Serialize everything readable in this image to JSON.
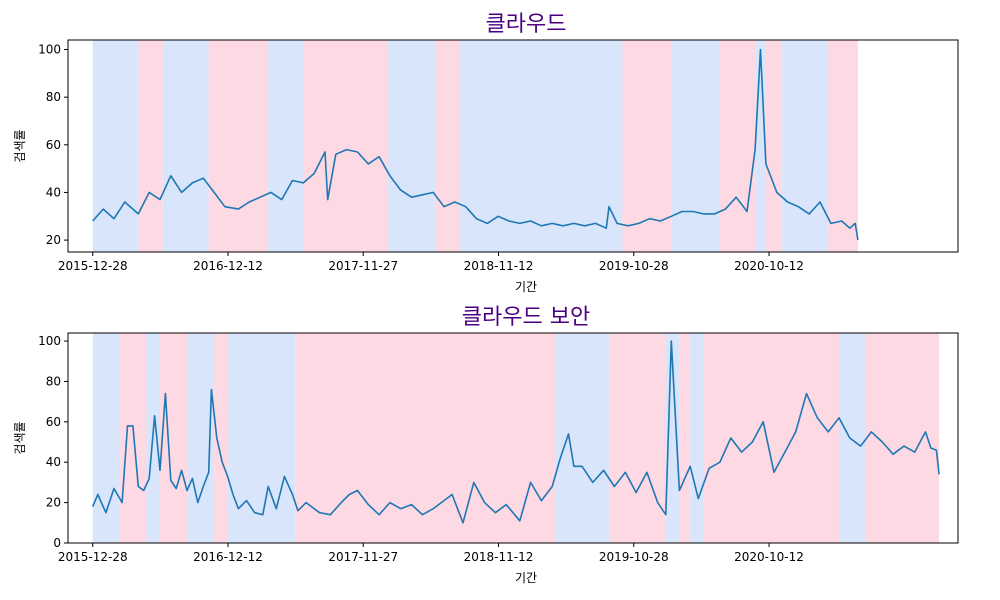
{
  "chart_data": [
    {
      "type": "line",
      "title": "클라우드",
      "xlabel": "기간",
      "ylabel": "검색률",
      "x_tick_labels": [
        "2015-12-28",
        "2016-12-12",
        "2017-11-27",
        "2018-11-12",
        "2019-10-28",
        "2020-10-12"
      ],
      "yticks": [
        20,
        40,
        60,
        80,
        100
      ],
      "ylim": [
        15,
        104
      ],
      "grid": false,
      "colors": {
        "line": "#1f77b4",
        "rise": "#fdd9e4",
        "fall": "#d8e5fb",
        "title": "#4b0082"
      },
      "bands": [
        {
          "start": "2015-12-28",
          "end": "2016-04-24",
          "trend": "fall"
        },
        {
          "start": "2016-04-24",
          "end": "2016-06-26",
          "trend": "rise"
        },
        {
          "start": "2016-06-26",
          "end": "2016-10-23",
          "trend": "fall"
        },
        {
          "start": "2016-10-23",
          "end": "2017-03-26",
          "trend": "rise"
        },
        {
          "start": "2017-03-26",
          "end": "2017-06-25",
          "trend": "fall"
        },
        {
          "start": "2017-06-25",
          "end": "2018-01-28",
          "trend": "rise"
        },
        {
          "start": "2018-01-28",
          "end": "2018-06-03",
          "trend": "fall"
        },
        {
          "start": "2018-06-03",
          "end": "2018-08-05",
          "trend": "rise"
        },
        {
          "start": "2018-08-05",
          "end": "2019-09-29",
          "trend": "fall"
        },
        {
          "start": "2019-09-29",
          "end": "2020-02-02",
          "trend": "rise"
        },
        {
          "start": "2020-02-02",
          "end": "2020-06-07",
          "trend": "fall"
        },
        {
          "start": "2020-06-07",
          "end": "2020-09-06",
          "trend": "rise"
        },
        {
          "start": "2020-09-06",
          "end": "2020-10-04",
          "trend": "fall"
        },
        {
          "start": "2020-10-04",
          "end": "2020-11-15",
          "trend": "rise"
        },
        {
          "start": "2020-11-15",
          "end": "2021-03-14",
          "trend": "fall"
        },
        {
          "start": "2021-03-14",
          "end": "2021-05-30",
          "trend": "rise"
        }
      ],
      "series": [
        {
          "points": [
            [
              "2015-12-28",
              28
            ],
            [
              "2016-01-24",
              33
            ],
            [
              "2016-02-21",
              29
            ],
            [
              "2016-03-20",
              36
            ],
            [
              "2016-04-24",
              31
            ],
            [
              "2016-05-22",
              40
            ],
            [
              "2016-06-19",
              37
            ],
            [
              "2016-07-17",
              47
            ],
            [
              "2016-08-14",
              40
            ],
            [
              "2016-09-11",
              44
            ],
            [
              "2016-10-09",
              46
            ],
            [
              "2016-11-06",
              40
            ],
            [
              "2016-12-04",
              34
            ],
            [
              "2017-01-08",
              33
            ],
            [
              "2017-02-05",
              36
            ],
            [
              "2017-03-05",
              38
            ],
            [
              "2017-04-02",
              40
            ],
            [
              "2017-04-30",
              37
            ],
            [
              "2017-05-28",
              45
            ],
            [
              "2017-06-25",
              44
            ],
            [
              "2017-07-23",
              48
            ],
            [
              "2017-08-20",
              57
            ],
            [
              "2017-08-27",
              37
            ],
            [
              "2017-09-17",
              56
            ],
            [
              "2017-10-15",
              58
            ],
            [
              "2017-11-12",
              57
            ],
            [
              "2017-12-10",
              52
            ],
            [
              "2018-01-07",
              55
            ],
            [
              "2018-02-04",
              47
            ],
            [
              "2018-03-04",
              41
            ],
            [
              "2018-04-01",
              38
            ],
            [
              "2018-04-29",
              39
            ],
            [
              "2018-05-27",
              40
            ],
            [
              "2018-06-24",
              34
            ],
            [
              "2018-07-22",
              36
            ],
            [
              "2018-08-19",
              34
            ],
            [
              "2018-09-16",
              29
            ],
            [
              "2018-10-14",
              27
            ],
            [
              "2018-11-11",
              30
            ],
            [
              "2018-12-09",
              28
            ],
            [
              "2019-01-06",
              27
            ],
            [
              "2019-02-03",
              28
            ],
            [
              "2019-03-03",
              26
            ],
            [
              "2019-03-31",
              27
            ],
            [
              "2019-04-28",
              26
            ],
            [
              "2019-05-26",
              27
            ],
            [
              "2019-06-23",
              26
            ],
            [
              "2019-07-21",
              27
            ],
            [
              "2019-08-18",
              25
            ],
            [
              "2019-08-25",
              34
            ],
            [
              "2019-09-15",
              27
            ],
            [
              "2019-10-13",
              26
            ],
            [
              "2019-11-10",
              27
            ],
            [
              "2019-12-08",
              29
            ],
            [
              "2020-01-05",
              28
            ],
            [
              "2020-02-02",
              30
            ],
            [
              "2020-03-01",
              32
            ],
            [
              "2020-03-29",
              32
            ],
            [
              "2020-04-26",
              31
            ],
            [
              "2020-05-24",
              31
            ],
            [
              "2020-06-21",
              33
            ],
            [
              "2020-07-19",
              38
            ],
            [
              "2020-08-16",
              32
            ],
            [
              "2020-09-06",
              58
            ],
            [
              "2020-09-20",
              100
            ],
            [
              "2020-10-04",
              52
            ],
            [
              "2020-11-01",
              40
            ],
            [
              "2020-11-29",
              36
            ],
            [
              "2020-12-27",
              34
            ],
            [
              "2021-01-24",
              31
            ],
            [
              "2021-02-21",
              36
            ],
            [
              "2021-03-21",
              27
            ],
            [
              "2021-04-18",
              28
            ],
            [
              "2021-05-09",
              25
            ],
            [
              "2021-05-23",
              27
            ],
            [
              "2021-05-30",
              20
            ]
          ]
        }
      ]
    },
    {
      "type": "line",
      "title": "클라우드 보안",
      "xlabel": "기간",
      "ylabel": "검색률",
      "x_tick_labels": [
        "2015-12-28",
        "2016-12-12",
        "2017-11-27",
        "2018-11-12",
        "2019-10-28",
        "2020-10-12"
      ],
      "yticks": [
        0,
        20,
        40,
        60,
        80,
        100
      ],
      "ylim": [
        0,
        104
      ],
      "grid": false,
      "colors": {
        "line": "#1f77b4",
        "rise": "#fdd9e4",
        "fall": "#d8e5fb",
        "title": "#4b0082"
      },
      "bands": [
        {
          "start": "2015-12-28",
          "end": "2016-03-06",
          "trend": "fall"
        },
        {
          "start": "2016-03-06",
          "end": "2016-05-15",
          "trend": "rise"
        },
        {
          "start": "2016-05-15",
          "end": "2016-06-19",
          "trend": "fall"
        },
        {
          "start": "2016-06-19",
          "end": "2016-08-28",
          "trend": "rise"
        },
        {
          "start": "2016-08-28",
          "end": "2016-11-06",
          "trend": "fall"
        },
        {
          "start": "2016-11-06",
          "end": "2016-12-11",
          "trend": "rise"
        },
        {
          "start": "2016-12-11",
          "end": "2017-06-04",
          "trend": "fall"
        },
        {
          "start": "2017-06-04",
          "end": "2019-04-07",
          "trend": "rise"
        },
        {
          "start": "2019-04-07",
          "end": "2019-08-25",
          "trend": "fall"
        },
        {
          "start": "2019-08-25",
          "end": "2020-01-19",
          "trend": "rise"
        },
        {
          "start": "2020-01-19",
          "end": "2020-02-23",
          "trend": "fall"
        },
        {
          "start": "2020-02-23",
          "end": "2020-03-22",
          "trend": "rise"
        },
        {
          "start": "2020-03-22",
          "end": "2020-04-26",
          "trend": "fall"
        },
        {
          "start": "2020-04-26",
          "end": "2021-04-11",
          "trend": "rise"
        },
        {
          "start": "2021-04-11",
          "end": "2021-06-20",
          "trend": "fall"
        },
        {
          "start": "2021-06-20",
          "end": "2021-12-26",
          "trend": "rise"
        }
      ],
      "series": [
        {
          "points": [
            [
              "2015-12-28",
              18
            ],
            [
              "2016-01-10",
              24
            ],
            [
              "2016-01-31",
              15
            ],
            [
              "2016-02-21",
              27
            ],
            [
              "2016-03-13",
              20
            ],
            [
              "2016-03-27",
              58
            ],
            [
              "2016-04-10",
              58
            ],
            [
              "2016-04-24",
              28
            ],
            [
              "2016-05-08",
              26
            ],
            [
              "2016-05-22",
              32
            ],
            [
              "2016-06-05",
              63
            ],
            [
              "2016-06-19",
              36
            ],
            [
              "2016-07-03",
              74
            ],
            [
              "2016-07-17",
              31
            ],
            [
              "2016-07-31",
              27
            ],
            [
              "2016-08-14",
              36
            ],
            [
              "2016-08-28",
              26
            ],
            [
              "2016-09-11",
              32
            ],
            [
              "2016-09-25",
              20
            ],
            [
              "2016-10-09",
              28
            ],
            [
              "2016-10-23",
              35
            ],
            [
              "2016-10-30",
              76
            ],
            [
              "2016-11-13",
              52
            ],
            [
              "2016-11-27",
              40
            ],
            [
              "2016-12-11",
              33
            ],
            [
              "2016-12-25",
              24
            ],
            [
              "2017-01-08",
              17
            ],
            [
              "2017-01-29",
              21
            ],
            [
              "2017-02-19",
              15
            ],
            [
              "2017-03-12",
              14
            ],
            [
              "2017-03-26",
              28
            ],
            [
              "2017-04-16",
              17
            ],
            [
              "2017-05-07",
              33
            ],
            [
              "2017-05-28",
              24
            ],
            [
              "2017-06-11",
              16
            ],
            [
              "2017-07-02",
              20
            ],
            [
              "2017-08-06",
              15
            ],
            [
              "2017-09-03",
              14
            ],
            [
              "2017-10-01",
              20
            ],
            [
              "2017-10-22",
              24
            ],
            [
              "2017-11-12",
              26
            ],
            [
              "2017-12-10",
              19
            ],
            [
              "2018-01-07",
              14
            ],
            [
              "2018-02-04",
              20
            ],
            [
              "2018-03-04",
              17
            ],
            [
              "2018-04-01",
              19
            ],
            [
              "2018-04-29",
              14
            ],
            [
              "2018-05-27",
              17
            ],
            [
              "2018-06-24",
              21
            ],
            [
              "2018-07-15",
              24
            ],
            [
              "2018-08-12",
              10
            ],
            [
              "2018-09-09",
              30
            ],
            [
              "2018-10-07",
              20
            ],
            [
              "2018-11-04",
              15
            ],
            [
              "2018-12-02",
              19
            ],
            [
              "2019-01-06",
              11
            ],
            [
              "2019-02-03",
              30
            ],
            [
              "2019-03-03",
              21
            ],
            [
              "2019-03-31",
              28
            ],
            [
              "2019-04-21",
              42
            ],
            [
              "2019-05-12",
              54
            ],
            [
              "2019-05-26",
              38
            ],
            [
              "2019-06-16",
              38
            ],
            [
              "2019-07-14",
              30
            ],
            [
              "2019-08-11",
              36
            ],
            [
              "2019-09-08",
              28
            ],
            [
              "2019-10-06",
              35
            ],
            [
              "2019-11-03",
              25
            ],
            [
              "2019-12-01",
              35
            ],
            [
              "2019-12-29",
              20
            ],
            [
              "2020-01-19",
              14
            ],
            [
              "2020-02-02",
              100
            ],
            [
              "2020-02-23",
              26
            ],
            [
              "2020-03-22",
              38
            ],
            [
              "2020-04-12",
              22
            ],
            [
              "2020-05-10",
              37
            ],
            [
              "2020-06-07",
              40
            ],
            [
              "2020-07-05",
              52
            ],
            [
              "2020-08-02",
              45
            ],
            [
              "2020-08-30",
              50
            ],
            [
              "2020-09-27",
              60
            ],
            [
              "2020-10-25",
              35
            ],
            [
              "2020-11-22",
              45
            ],
            [
              "2020-12-20",
              55
            ],
            [
              "2021-01-17",
              74
            ],
            [
              "2021-02-14",
              62
            ],
            [
              "2021-03-14",
              55
            ],
            [
              "2021-04-11",
              62
            ],
            [
              "2021-05-09",
              52
            ],
            [
              "2021-06-06",
              48
            ],
            [
              "2021-07-04",
              55
            ],
            [
              "2021-08-01",
              50
            ],
            [
              "2021-08-29",
              44
            ],
            [
              "2021-09-26",
              48
            ],
            [
              "2021-10-24",
              45
            ],
            [
              "2021-11-21",
              55
            ],
            [
              "2021-12-05",
              47
            ],
            [
              "2021-12-19",
              46
            ],
            [
              "2021-12-26",
              34
            ]
          ]
        }
      ]
    }
  ]
}
